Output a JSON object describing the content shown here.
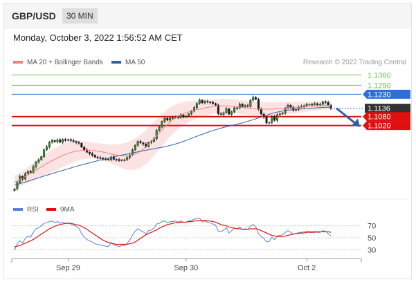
{
  "header": {
    "symbol": "GBP/USD",
    "timeframe": "30 MIN",
    "datetime": "Monday, October 3, 2022 1:56:52 AM CET"
  },
  "credit": "Research © 2022 Trading Central",
  "colors": {
    "resistance": "#6cc24a",
    "pivot": "#2e6fd6",
    "support": "#e01010",
    "current": "#333333",
    "ma20": "#f08080",
    "ma50": "#2e5fa6",
    "band": "#fcdede",
    "rsi": "#5b7fe0",
    "rsi_ma": "#e01010"
  },
  "chart_data": [
    {
      "type": "candlestick",
      "legend": [
        {
          "name": "MA 20 + Bollinger Bands",
          "color": "#f08080"
        },
        {
          "name": "MA 50",
          "color": "#2e5fa6"
        }
      ],
      "legend_position": "top-left",
      "x_ticks": [
        "Sep 29",
        "Sep 30",
        "Oct 2"
      ],
      "ylim": [
        1.055,
        1.138
      ],
      "levels": [
        {
          "label": "1.1360",
          "value": 1.136,
          "kind": "resistance"
        },
        {
          "label": "1.1290",
          "value": 1.129,
          "kind": "resistance"
        },
        {
          "label": "1.1230",
          "value": 1.123,
          "kind": "pivot"
        },
        {
          "label": "1.1136",
          "value": 1.1136,
          "kind": "current"
        },
        {
          "label": "1.1080",
          "value": 1.108,
          "kind": "support"
        },
        {
          "label": "1.1020",
          "value": 1.102,
          "kind": "support"
        }
      ],
      "projection": {
        "from": 1.1136,
        "to": 1.1025
      },
      "close": [
        1.0595,
        1.0638,
        1.0679,
        1.0661,
        1.0697,
        1.0713,
        1.0705,
        1.0744,
        1.0775,
        1.079,
        1.0812,
        1.0857,
        1.0877,
        1.0908,
        1.092,
        1.0911,
        1.0924,
        1.0908,
        1.0927,
        1.092,
        1.0926,
        1.0919,
        1.0913,
        1.0907,
        1.0901,
        1.0875,
        1.0857,
        1.0841,
        1.0832,
        1.0821,
        1.0808,
        1.0804,
        1.0801,
        1.0796,
        1.0794,
        1.0791,
        1.0809,
        1.0793,
        1.0792,
        1.0785,
        1.0789,
        1.079,
        1.0806,
        1.0823,
        1.0856,
        1.0888,
        1.0913,
        1.0904,
        1.0896,
        1.0879,
        1.0906,
        1.0913,
        1.0931,
        1.0988,
        1.1009,
        1.1048,
        1.1068,
        1.1056,
        1.1071,
        1.1072,
        1.1079,
        1.1073,
        1.1091,
        1.108,
        1.1082,
        1.1099,
        1.1116,
        1.114,
        1.1168,
        1.1191,
        1.1172,
        1.1182,
        1.1177,
        1.1176,
        1.1168,
        1.1157,
        1.1099,
        1.1094,
        1.1106,
        1.1133,
        1.1096,
        1.1111,
        1.1139,
        1.1138,
        1.1164,
        1.1147,
        1.1154,
        1.1149,
        1.119,
        1.121,
        1.1196,
        1.1129,
        1.1097,
        1.1077,
        1.1037,
        1.104,
        1.108,
        1.1055,
        1.1093,
        1.1098,
        1.1104,
        1.1136,
        1.1156,
        1.1143,
        1.1122,
        1.1129,
        1.1145,
        1.1148,
        1.1153,
        1.1162,
        1.1162,
        1.1161,
        1.1167,
        1.1159,
        1.1162,
        1.118,
        1.1175,
        1.1157,
        1.1136
      ],
      "ma50": [
        1.062,
        1.0625,
        1.063,
        1.0636,
        1.0641,
        1.0647,
        1.0652,
        1.0658,
        1.0664,
        1.0669,
        1.0675,
        1.0681,
        1.0687,
        1.0692,
        1.0698,
        1.0703,
        1.0709,
        1.0714,
        1.0719,
        1.0725,
        1.073,
        1.0735,
        1.0741,
        1.0746,
        1.0751,
        1.0756,
        1.0761,
        1.0765,
        1.077,
        1.0775,
        1.0779,
        1.0784,
        1.0788,
        1.0793,
        1.0797,
        1.0801,
        1.0806,
        1.081,
        1.0814,
        1.0818,
        1.0822,
        1.0825,
        1.0829,
        1.0833,
        1.0836,
        1.084,
        1.0844,
        1.0847,
        1.0851,
        1.0854,
        1.0858,
        1.0861,
        1.0864,
        1.0868,
        1.0871,
        1.0874,
        1.0878,
        1.0882,
        1.0887,
        1.0891,
        1.0896,
        1.0902,
        1.0908,
        1.0914,
        1.092,
        1.0927,
        1.0934,
        1.0941,
        1.0948,
        1.0955,
        1.0961,
        1.0968,
        1.0974,
        1.0981,
        1.0986,
        1.0992,
        1.0997,
        1.1002,
        1.1007,
        1.1012,
        1.1016,
        1.1021,
        1.1025,
        1.1029,
        1.1034,
        1.1038,
        1.1043,
        1.1048,
        1.1054,
        1.1059,
        1.1065,
        1.1071,
        1.1077,
        1.1083,
        1.1089,
        1.1095,
        1.1101,
        1.1106,
        1.111,
        1.1114,
        1.1118,
        1.1121,
        1.1123,
        1.1125,
        1.1127,
        1.1128,
        1.113,
        1.1131,
        1.1133,
        1.1134,
        1.1135,
        1.1137,
        1.1138,
        1.1139,
        1.114,
        1.1141,
        1.1142,
        1.1142,
        1.1142
      ],
      "ma20": [
        1.064,
        1.0648,
        1.0657,
        1.0667,
        1.0677,
        1.0688,
        1.0699,
        1.071,
        1.0721,
        1.0732,
        1.0743,
        1.0754,
        1.0764,
        1.0774,
        1.0784,
        1.0793,
        1.0802,
        1.0811,
        1.0819,
        1.0827,
        1.0833,
        1.0839,
        1.0844,
        1.0848,
        1.0851,
        1.0853,
        1.0854,
        1.0854,
        1.0854,
        1.0853,
        1.0851,
        1.0849,
        1.0846,
        1.0842,
        1.0838,
        1.0834,
        1.083,
        1.0826,
        1.0822,
        1.0819,
        1.0817,
        1.0816,
        1.0817,
        1.0819,
        1.0823,
        1.0829,
        1.0837,
        1.0848,
        1.0861,
        1.0876,
        1.0893,
        1.0911,
        1.093,
        1.095,
        1.097,
        1.099,
        1.1009,
        1.1027,
        1.1043,
        1.1058,
        1.1071,
        1.1082,
        1.1091,
        1.1099,
        1.1106,
        1.1112,
        1.1117,
        1.1122,
        1.1126,
        1.113,
        1.1134,
        1.1138,
        1.1141,
        1.1144,
        1.1147,
        1.1149,
        1.1151,
        1.1152,
        1.1152,
        1.1152,
        1.1151,
        1.115,
        1.1148,
        1.1146,
        1.1144,
        1.1142,
        1.114,
        1.1138,
        1.1136,
        1.1134,
        1.1132,
        1.1131,
        1.113,
        1.113,
        1.113,
        1.113,
        1.1131,
        1.1132,
        1.1133,
        1.1134,
        1.1135,
        1.1136,
        1.1137,
        1.1138,
        1.1139,
        1.114,
        1.1142,
        1.1143,
        1.1145,
        1.1146,
        1.1148,
        1.1149,
        1.1151,
        1.1152,
        1.1153,
        1.1154,
        1.1155,
        1.1155,
        1.1155
      ],
      "band_width": [
        0.0045,
        0.0046,
        0.0047,
        0.0049,
        0.0051,
        0.0053,
        0.0056,
        0.0059,
        0.0062,
        0.0065,
        0.0068,
        0.007,
        0.0072,
        0.0074,
        0.0075,
        0.0076,
        0.0077,
        0.0077,
        0.0077,
        0.0076,
        0.0075,
        0.0073,
        0.0071,
        0.0068,
        0.0065,
        0.0062,
        0.0059,
        0.0057,
        0.0055,
        0.0054,
        0.0053,
        0.0053,
        0.0054,
        0.0056,
        0.0058,
        0.0061,
        0.0064,
        0.0068,
        0.0072,
        0.0077,
        0.0082,
        0.0087,
        0.0092,
        0.0097,
        0.0101,
        0.0105,
        0.0108,
        0.0111,
        0.0113,
        0.0114,
        0.0115,
        0.0115,
        0.0114,
        0.0113,
        0.0111,
        0.0108,
        0.0105,
        0.0102,
        0.0098,
        0.0094,
        0.009,
        0.0086,
        0.0082,
        0.0078,
        0.0074,
        0.007,
        0.0067,
        0.0064,
        0.0061,
        0.0058,
        0.0056,
        0.0054,
        0.0052,
        0.005,
        0.0049,
        0.0048,
        0.0047,
        0.0047,
        0.0047,
        0.0047,
        0.0047,
        0.0047,
        0.0047,
        0.0047,
        0.0047,
        0.0047,
        0.0047,
        0.0047,
        0.0047,
        0.0047,
        0.0047,
        0.0047,
        0.0047,
        0.0047,
        0.0047,
        0.0047,
        0.0046,
        0.0046,
        0.0045,
        0.0044,
        0.0043,
        0.0042,
        0.0041,
        0.004,
        0.0039,
        0.0038,
        0.0037,
        0.0036,
        0.0035,
        0.0034,
        0.0033,
        0.0032,
        0.0031,
        0.003,
        0.0029,
        0.0028,
        0.0027,
        0.0026,
        0.0025
      ]
    },
    {
      "type": "line",
      "legend": [
        {
          "name": "RSI",
          "color": "#5b7fe0"
        },
        {
          "name": "9MA",
          "color": "#e01010"
        }
      ],
      "ylim": [
        20,
        80
      ],
      "y_ticks": [
        70,
        50,
        30
      ],
      "rsi": [
        29,
        40,
        45,
        41,
        49,
        53,
        51,
        59,
        65,
        67,
        70,
        74,
        75,
        77,
        78,
        75,
        77,
        74,
        76,
        74,
        75,
        73,
        71,
        69,
        66,
        57,
        51,
        47,
        45,
        43,
        40,
        39,
        38,
        37,
        36,
        35,
        42,
        38,
        37,
        35,
        37,
        37,
        41,
        46,
        54,
        61,
        65,
        62,
        60,
        56,
        62,
        63,
        66,
        73,
        74,
        77,
        78,
        75,
        77,
        77,
        78,
        76,
        78,
        76,
        76,
        78,
        79,
        81,
        82,
        83,
        76,
        78,
        76,
        75,
        73,
        71,
        61,
        60,
        63,
        67,
        58,
        62,
        66,
        65,
        68,
        64,
        65,
        64,
        70,
        72,
        68,
        57,
        52,
        49,
        43,
        44,
        51,
        47,
        53,
        54,
        55,
        59,
        62,
        59,
        56,
        57,
        59,
        59,
        60,
        61,
        61,
        60,
        61,
        59,
        59,
        62,
        61,
        57,
        53
      ],
      "rsi_ma": [
        35,
        36,
        37,
        39,
        41,
        43,
        45,
        47,
        50,
        53,
        56,
        59,
        62,
        65,
        67,
        69,
        71,
        72,
        73,
        74,
        74,
        74,
        73,
        72,
        71,
        69,
        67,
        64,
        61,
        58,
        55,
        52,
        49,
        46,
        44,
        42,
        41,
        40,
        39,
        39,
        39,
        39,
        39,
        40,
        41,
        43,
        46,
        49,
        52,
        55,
        57,
        59,
        61,
        63,
        66,
        68,
        70,
        72,
        73,
        74,
        75,
        75,
        76,
        76,
        76,
        77,
        77,
        78,
        78,
        79,
        79,
        79,
        78,
        78,
        77,
        76,
        74,
        72,
        71,
        70,
        68,
        67,
        66,
        65,
        65,
        64,
        64,
        64,
        65,
        65,
        65,
        64,
        62,
        60,
        58,
        56,
        54,
        53,
        52,
        52,
        52,
        53,
        54,
        55,
        56,
        57,
        57,
        58,
        58,
        59,
        59,
        59,
        59,
        60,
        60,
        60,
        60,
        60,
        59
      ]
    }
  ]
}
